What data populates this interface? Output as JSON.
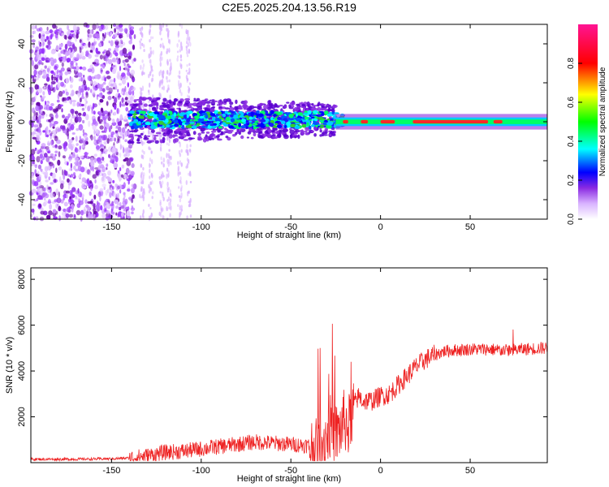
{
  "title": "C2E5.2025.204.13.56.R19",
  "chart_data": [
    {
      "type": "heatmap",
      "xlabel": "Height of straight line (km)",
      "ylabel": "Frequency (Hz)",
      "xlim": [
        -195,
        93
      ],
      "ylim": [
        -50,
        50
      ],
      "x_ticks": [
        -150,
        -100,
        -50,
        0,
        50
      ],
      "y_ticks": [
        -40,
        -20,
        0,
        20,
        40
      ],
      "colorbar": {
        "label": "Normalized spectral amplitude",
        "range": [
          0,
          1
        ],
        "ticks": [
          "0.0",
          "0.2",
          "0.4",
          "0.6",
          "0.8"
        ],
        "colormap": [
          "#ffffff",
          "#8a2be2",
          "#0000ff",
          "#00ffff",
          "#00ff00",
          "#ffff00",
          "#ff0000",
          "#ff1493"
        ]
      },
      "description_values": {
        "noise_region_x": [
          -195,
          -140
        ],
        "signal_band_center_hz": 0,
        "strong_signal_x": [
          -20,
          93
        ]
      }
    },
    {
      "type": "line",
      "xlabel": "Height of straight line (km)",
      "ylabel": "SNR (10 * v/v)",
      "xlim": [
        -195,
        93
      ],
      "ylim": [
        0,
        8500
      ],
      "x_ticks": [
        -150,
        -100,
        -50,
        0,
        50
      ],
      "y_ticks": [
        2000,
        4000,
        6000,
        8000
      ],
      "series": [
        {
          "color": "#ee2222",
          "x": [
            -195,
            -170,
            -150,
            -140,
            -130,
            -120,
            -110,
            -100,
            -90,
            -80,
            -70,
            -60,
            -50,
            -40,
            -35,
            -30,
            -28,
            -25,
            -22,
            -20,
            -18,
            -15,
            -12,
            -10,
            -5,
            0,
            5,
            10,
            15,
            20,
            25,
            30,
            35,
            40,
            50,
            60,
            70,
            80,
            90
          ],
          "y": [
            150,
            150,
            170,
            200,
            300,
            450,
            500,
            600,
            700,
            800,
            900,
            850,
            800,
            750,
            500,
            1200,
            1600,
            1200,
            1500,
            1900,
            1500,
            2500,
            2900,
            2700,
            2700,
            2900,
            3000,
            3400,
            3800,
            4200,
            4500,
            4700,
            4850,
            4900,
            4950,
            4950,
            4900,
            4950,
            5000
          ]
        }
      ]
    }
  ]
}
